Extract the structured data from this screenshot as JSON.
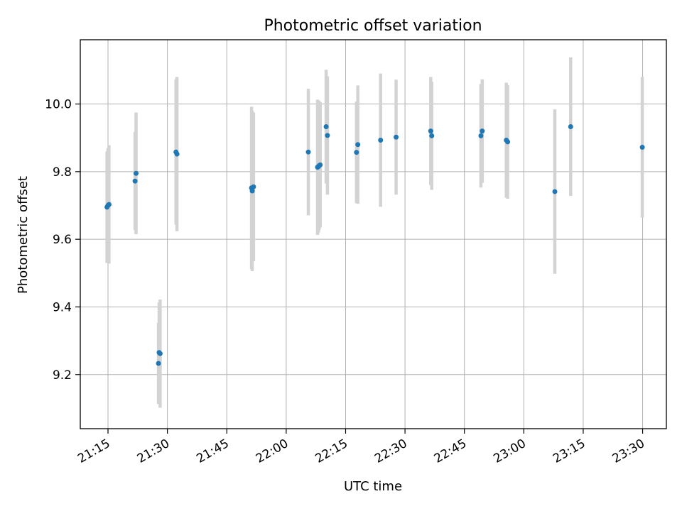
{
  "chart_data": {
    "type": "scatter",
    "title": "Photometric offset variation",
    "xlabel": "UTC time",
    "ylabel": "Photometric offset",
    "xlim": [
      "21:08",
      "23:36"
    ],
    "ylim": [
      9.04,
      10.19
    ],
    "x_ticks": [
      "21:15",
      "21:30",
      "21:45",
      "22:00",
      "22:15",
      "22:30",
      "22:45",
      "23:00",
      "23:15",
      "23:30"
    ],
    "y_ticks": [
      "9.2",
      "9.4",
      "9.6",
      "9.8",
      "10.0"
    ],
    "grid": true,
    "marker_color": "#1f77b4",
    "errorbar_color": "#d3d3d3",
    "series": [
      {
        "points": [
          {
            "x": "21:14:45",
            "y": 9.695,
            "yerr": 0.165
          },
          {
            "x": "21:15:00",
            "y": 9.7,
            "yerr": 0.17
          },
          {
            "x": "21:15:15",
            "y": 9.703,
            "yerr": 0.175
          },
          {
            "x": "21:21:50",
            "y": 9.772,
            "yerr": 0.145
          },
          {
            "x": "21:22:05",
            "y": 9.795,
            "yerr": 0.18
          },
          {
            "x": "21:27:45",
            "y": 9.233,
            "yerr": 0.12
          },
          {
            "x": "21:27:55",
            "y": 9.265,
            "yerr": 0.148
          },
          {
            "x": "21:28:10",
            "y": 9.262,
            "yerr": 0.16
          },
          {
            "x": "21:32:10",
            "y": 9.858,
            "yerr": 0.215
          },
          {
            "x": "21:32:25",
            "y": 9.852,
            "yerr": 0.228
          },
          {
            "x": "21:51:15",
            "y": 9.752,
            "yerr": 0.24
          },
          {
            "x": "21:51:25",
            "y": 9.743,
            "yerr": 0.237
          },
          {
            "x": "21:51:45",
            "y": 9.755,
            "yerr": 0.22
          },
          {
            "x": "22:05:35",
            "y": 9.858,
            "yerr": 0.187
          },
          {
            "x": "22:07:55",
            "y": 9.813,
            "yerr": 0.2
          },
          {
            "x": "22:08:10",
            "y": 9.815,
            "yerr": 0.195
          },
          {
            "x": "22:08:20",
            "y": 9.818,
            "yerr": 0.19
          },
          {
            "x": "22:08:35",
            "y": 9.82,
            "yerr": 0.185
          },
          {
            "x": "22:10:05",
            "y": 9.933,
            "yerr": 0.168
          },
          {
            "x": "22:10:25",
            "y": 9.907,
            "yerr": 0.175
          },
          {
            "x": "22:17:45",
            "y": 9.857,
            "yerr": 0.15
          },
          {
            "x": "22:18:05",
            "y": 9.88,
            "yerr": 0.175
          },
          {
            "x": "22:23:50",
            "y": 9.893,
            "yerr": 0.197
          },
          {
            "x": "22:27:45",
            "y": 9.902,
            "yerr": 0.17
          },
          {
            "x": "22:36:30",
            "y": 9.92,
            "yerr": 0.16
          },
          {
            "x": "22:36:45",
            "y": 9.906,
            "yerr": 0.16
          },
          {
            "x": "22:49:10",
            "y": 9.906,
            "yerr": 0.153
          },
          {
            "x": "22:49:30",
            "y": 9.92,
            "yerr": 0.153
          },
          {
            "x": "22:55:35",
            "y": 9.893,
            "yerr": 0.17
          },
          {
            "x": "22:55:55",
            "y": 9.888,
            "yerr": 0.168
          },
          {
            "x": "23:07:50",
            "y": 9.741,
            "yerr": 0.243
          },
          {
            "x": "23:11:50",
            "y": 9.933,
            "yerr": 0.205
          },
          {
            "x": "23:29:55",
            "y": 9.872,
            "yerr": 0.208
          }
        ]
      }
    ]
  }
}
